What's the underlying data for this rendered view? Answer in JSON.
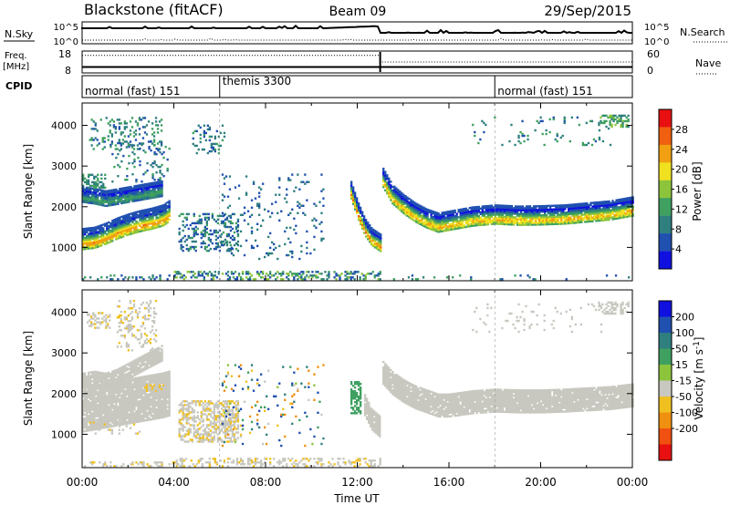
{
  "header": {
    "station": "Blackstone (fitACF)",
    "beam": "Beam 09",
    "date": "29/Sep/2015"
  },
  "noise_panel": {
    "left_label": "N.Sky",
    "right_label": "N.Search",
    "left_ticks": [
      "10^5",
      "10^0"
    ],
    "right_ticks": [
      "10^5",
      "10^0"
    ]
  },
  "freq_panel": {
    "left_label_top": "Freq.",
    "left_label_bottom": "[MHz]",
    "right_label": "Nave",
    "left_ticks": [
      "18",
      "8"
    ],
    "right_ticks": [
      "60",
      "0"
    ],
    "freq_mhz": 10.5,
    "nave_before": 50,
    "nave_after": 30,
    "nave_step_hour": 13.0
  },
  "cpid": {
    "label": "CPID",
    "segments": [
      {
        "text": "normal (fast) 151",
        "start_hour": 0
      },
      {
        "text": "themis 3300",
        "start_hour": 6
      },
      {
        "text": "normal (fast) 151",
        "start_hour": 18
      }
    ]
  },
  "colors": {
    "power_scale": [
      "#1010e0",
      "#2050b0",
      "#2f7f7f",
      "#3fa060",
      "#8cc43c",
      "#f0e020",
      "#f0a010",
      "#f06010",
      "#e81010"
    ],
    "velocity_scale": [
      "#1010e0",
      "#2050b0",
      "#2f7f7f",
      "#3fa060",
      "#8cc43c",
      "#c8c8c0",
      "#f0c020",
      "#f09010",
      "#f05010",
      "#e81010"
    ],
    "ground_grey": "#c8c8c0"
  },
  "chart_data": [
    {
      "type": "heatmap",
      "name": "power",
      "ylabel": "Slant Range [km]",
      "colorbar_label": "Power [dB]",
      "colorbar_ticks": [
        4,
        8,
        12,
        16,
        20,
        24,
        28
      ],
      "xlim": [
        0,
        24
      ],
      "ylim": [
        180,
        4550
      ],
      "yticks": [
        1000,
        2000,
        3000,
        4000
      ],
      "ground_scatter": false,
      "bands": [
        {
          "t": [
            0.0,
            0.5,
            1.0,
            1.5,
            2.0,
            2.5,
            3.0,
            3.5,
            3.8
          ],
          "r": [
            1200,
            1230,
            1330,
            1460,
            1560,
            1640,
            1700,
            1780,
            1900
          ],
          "width": 520,
          "peak_db": 28
        },
        {
          "t": [
            0.0,
            0.5,
            1.0,
            1.5,
            2.0,
            2.5,
            3.0,
            3.5
          ],
          "r": [
            2300,
            2260,
            2200,
            2250,
            2300,
            2350,
            2400,
            2450
          ],
          "width": 400,
          "peak_db": 14
        },
        {
          "t": [
            11.7,
            12.0,
            12.3,
            12.6,
            13.0
          ],
          "r": [
            2400,
            1900,
            1500,
            1250,
            1100
          ],
          "width": 430,
          "peak_db": 28
        },
        {
          "t": [
            13.1,
            13.5,
            14.0,
            14.5,
            15.0,
            15.5,
            16.0,
            17.0,
            18.0,
            19.0,
            20.0,
            21.0,
            22.0,
            23.0,
            24.0
          ],
          "r": [
            2700,
            2300,
            2050,
            1850,
            1700,
            1600,
            1650,
            1750,
            1800,
            1770,
            1780,
            1800,
            1850,
            1900,
            2000
          ],
          "width": 470,
          "peak_db": 26
        }
      ],
      "patches": [
        {
          "t": [
            0.3,
            3.5
          ],
          "r": [
            3400,
            4200
          ],
          "density": 0.18,
          "db": [
            6,
            16
          ]
        },
        {
          "t": [
            0.0,
            1.0
          ],
          "r": [
            2450,
            2800
          ],
          "density": 0.45,
          "db": [
            8,
            16
          ]
        },
        {
          "t": [
            1.2,
            3.8
          ],
          "r": [
            2600,
            3600
          ],
          "density": 0.14,
          "db": [
            4,
            14
          ]
        },
        {
          "t": [
            4.2,
            6.8
          ],
          "r": [
            900,
            1800
          ],
          "density": 0.3,
          "db": [
            4,
            14
          ]
        },
        {
          "t": [
            4.8,
            6.2
          ],
          "r": [
            3300,
            4000
          ],
          "density": 0.18,
          "db": [
            6,
            14
          ]
        },
        {
          "t": [
            6.0,
            10.5
          ],
          "r": [
            700,
            2800
          ],
          "density": 0.06,
          "db": [
            4,
            12
          ]
        },
        {
          "t": [
            17.0,
            23.0
          ],
          "r": [
            3500,
            4200
          ],
          "density": 0.05,
          "db": [
            6,
            16
          ]
        },
        {
          "t": [
            22.5,
            23.8
          ],
          "r": [
            3950,
            4250
          ],
          "density": 0.45,
          "db": [
            8,
            18
          ]
        },
        {
          "t": [
            4.0,
            13.0
          ],
          "r": [
            200,
            420
          ],
          "density": 0.35,
          "db": [
            4,
            20
          ]
        },
        {
          "t": [
            0.0,
            4.0
          ],
          "r": [
            200,
            300
          ],
          "density": 0.25,
          "db": [
            4,
            16
          ]
        },
        {
          "t": [
            13.0,
            24.0
          ],
          "r": [
            200,
            300
          ],
          "density": 0.06,
          "db": [
            4,
            16
          ]
        }
      ]
    },
    {
      "type": "heatmap",
      "name": "velocity",
      "xlabel": "Time UT",
      "ylabel": "Slant Range [km]",
      "colorbar_label": "Velocity [m s^-1]",
      "colorbar_ticks": [
        -200,
        -100,
        -50,
        -15,
        15,
        50,
        100,
        200
      ],
      "xticks": [
        "00:00",
        "04:00",
        "08:00",
        "12:00",
        "16:00",
        "20:00",
        "00:00"
      ],
      "xlim": [
        0,
        24
      ],
      "ylim": [
        180,
        4550
      ],
      "yticks": [
        1000,
        2000,
        3000,
        4000
      ],
      "ground_scatter": true,
      "bands": [
        {
          "t": [
            0.0,
            0.5,
            1.0,
            1.5,
            2.0,
            2.5,
            3.0,
            3.5,
            3.8
          ],
          "r": [
            1600,
            1650,
            1700,
            1750,
            1800,
            1850,
            1900,
            1950,
            2000
          ],
          "width": 1100,
          "grey": true
        },
        {
          "t": [
            0.0,
            0.5,
            1.0,
            1.5,
            2.0,
            2.5,
            3.0,
            3.5
          ],
          "r": [
            2300,
            2350,
            2300,
            2400,
            2550,
            2700,
            2850,
            3000
          ],
          "width": 380,
          "grey": true
        },
        {
          "t": [
            12.3,
            12.6,
            13.0
          ],
          "r": [
            1700,
            1350,
            1150
          ],
          "width": 500,
          "grey": true
        },
        {
          "t": [
            13.1,
            13.5,
            14.0,
            14.5,
            15.0,
            15.5,
            16.0,
            17.0,
            18.0,
            19.0,
            20.0,
            21.0,
            22.0,
            23.0,
            24.0
          ],
          "r": [
            2500,
            2250,
            2050,
            1900,
            1800,
            1700,
            1700,
            1780,
            1820,
            1800,
            1800,
            1820,
            1850,
            1880,
            1950
          ],
          "width": 560,
          "grey": true
        }
      ],
      "patches": [
        {
          "t": [
            0.2,
            1.2
          ],
          "r": [
            3600,
            4000
          ],
          "density": 0.4,
          "vel": [
            -60,
            -20
          ]
        },
        {
          "t": [
            1.5,
            3.2
          ],
          "r": [
            3000,
            4300
          ],
          "density": 0.2,
          "vel": [
            -60,
            -20
          ]
        },
        {
          "t": [
            4.2,
            6.8
          ],
          "r": [
            800,
            1800
          ],
          "density": 0.55,
          "vel": [
            -60,
            -20
          ]
        },
        {
          "t": [
            0.3,
            2.5
          ],
          "r": [
            1000,
            1500
          ],
          "density": 0.12,
          "vel": [
            -60,
            -20
          ]
        },
        {
          "t": [
            2.7,
            3.6
          ],
          "r": [
            2050,
            2200
          ],
          "density": 0.7,
          "vel": [
            -60,
            -20
          ]
        },
        {
          "t": [
            11.7,
            12.1
          ],
          "r": [
            1500,
            2300
          ],
          "density": 0.6,
          "vel": [
            20,
            50
          ]
        },
        {
          "t": [
            17.0,
            23.0
          ],
          "r": [
            3500,
            4200
          ],
          "density": 0.05,
          "grey": true
        },
        {
          "t": [
            22.5,
            23.8
          ],
          "r": [
            3950,
            4250
          ],
          "density": 0.45,
          "grey": true
        },
        {
          "t": [
            4.0,
            13.0
          ],
          "r": [
            200,
            400
          ],
          "density": 0.35,
          "vel": [
            -60,
            -20
          ]
        },
        {
          "t": [
            0.0,
            4.0
          ],
          "r": [
            200,
            300
          ],
          "density": 0.25,
          "vel": [
            -60,
            -20
          ]
        },
        {
          "t": [
            6.0,
            10.5
          ],
          "r": [
            700,
            2800
          ],
          "density": 0.05,
          "vel": [
            -200,
            200
          ]
        }
      ]
    }
  ]
}
